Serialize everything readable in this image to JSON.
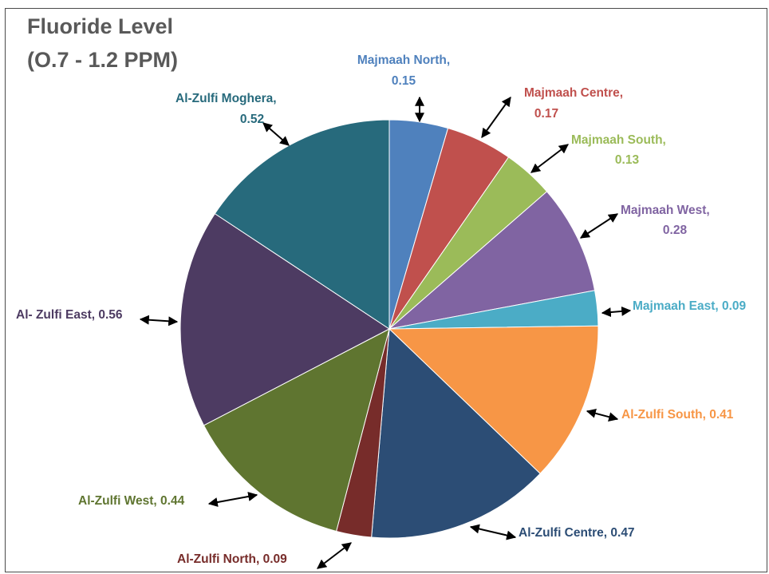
{
  "chart_data": {
    "type": "pie",
    "title": "Fluoride Level",
    "subtitle": "(O.7 - 1.2 PPM)",
    "slices": [
      {
        "label": "Majmaah North",
        "value": 0.15,
        "display": "Majmaah North, 0.15",
        "color": "#4F81BD"
      },
      {
        "label": "Majmaah Centre",
        "value": 0.17,
        "display": "Majmaah Centre, 0.17",
        "color": "#C0504D"
      },
      {
        "label": "Majmaah South",
        "value": 0.13,
        "display": "Majmaah South, 0.13",
        "color": "#9BBB59"
      },
      {
        "label": "Majmaah West",
        "value": 0.28,
        "display": "Majmaah West, 0.28",
        "color": "#8064A2"
      },
      {
        "label": "Majmaah East",
        "value": 0.09,
        "display": "Majmaah East, 0.09",
        "color": "#4BACC6"
      },
      {
        "label": "Al-Zulfi South",
        "value": 0.41,
        "display": "Al-Zulfi South, 0.41",
        "color": "#F79646"
      },
      {
        "label": "Al-Zulfi Centre",
        "value": 0.47,
        "display": "Al-Zulfi Centre, 0.47",
        "color": "#2C4D75"
      },
      {
        "label": "Al-Zulfi North",
        "value": 0.09,
        "display": "Al-Zulfi North, 0.09",
        "color": "#772C2A"
      },
      {
        "label": "Al-Zulfi West",
        "value": 0.44,
        "display": "Al-Zulfi West, 0.44",
        "color": "#5F7530"
      },
      {
        "label": "Al- Zulfi East",
        "value": 0.56,
        "display": "Al- Zulfi East, 0.56",
        "color": "#4D3B62"
      },
      {
        "label": "Al-Zulfi Moghera",
        "value": 0.52,
        "display": "Al-Zulfi Moghera, 0.52",
        "color": "#276A7C"
      }
    ],
    "start_angle": "12 o'clock",
    "direction": "clockwise",
    "legend": "none"
  }
}
